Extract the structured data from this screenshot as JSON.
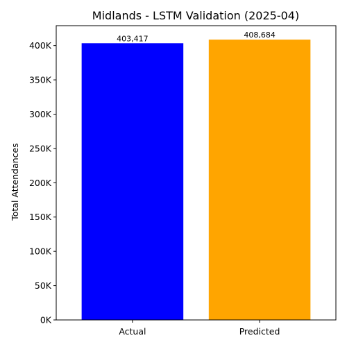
{
  "chart_data": {
    "type": "bar",
    "title": "Midlands - LSTM Validation (2025-04)",
    "xlabel": "",
    "ylabel": "Total Attendances",
    "categories": [
      "Actual",
      "Predicted"
    ],
    "values": [
      403417,
      408684
    ],
    "data_labels": [
      "403,417",
      "408,684"
    ],
    "colors": [
      "#0000ff",
      "#ffa500"
    ],
    "ylim": [
      0,
      429000
    ],
    "yticks": [
      0,
      50000,
      100000,
      150000,
      200000,
      250000,
      300000,
      350000,
      400000
    ],
    "ytick_labels": [
      "0K",
      "50K",
      "100K",
      "150K",
      "200K",
      "250K",
      "300K",
      "350K",
      "400K"
    ],
    "grid": false,
    "legend": "none"
  }
}
